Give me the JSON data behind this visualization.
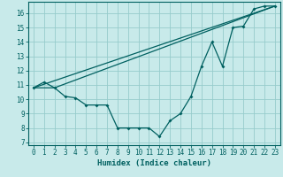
{
  "xlabel": "Humidex (Indice chaleur)",
  "xlim": [
    -0.5,
    23.5
  ],
  "ylim": [
    6.8,
    16.8
  ],
  "yticks": [
    7,
    8,
    9,
    10,
    11,
    12,
    13,
    14,
    15,
    16
  ],
  "xticks": [
    0,
    1,
    2,
    3,
    4,
    5,
    6,
    7,
    8,
    9,
    10,
    11,
    12,
    13,
    14,
    15,
    16,
    17,
    18,
    19,
    20,
    21,
    22,
    23
  ],
  "background_color": "#c8eaea",
  "grid_color": "#96cccc",
  "line_color": "#006060",
  "line1_x": [
    0,
    1,
    2,
    3,
    4,
    5,
    6,
    7,
    8,
    9,
    10,
    11,
    12,
    13,
    14,
    15,
    16,
    17,
    18,
    19,
    20,
    21,
    22,
    23
  ],
  "line1_y": [
    10.8,
    11.2,
    10.8,
    10.2,
    10.1,
    9.6,
    9.6,
    9.6,
    8.0,
    8.0,
    8.0,
    8.0,
    7.4,
    8.5,
    9.0,
    10.2,
    12.3,
    14.0,
    12.3,
    15.0,
    15.1,
    16.3,
    16.5,
    16.5
  ],
  "line2_x": [
    0,
    23
  ],
  "line2_y": [
    10.8,
    16.5
  ],
  "line3_x": [
    0,
    2,
    23
  ],
  "line3_y": [
    10.8,
    10.8,
    16.5
  ],
  "font_color": "#006060",
  "tick_fontsize": 5.5,
  "label_fontsize": 6.5
}
